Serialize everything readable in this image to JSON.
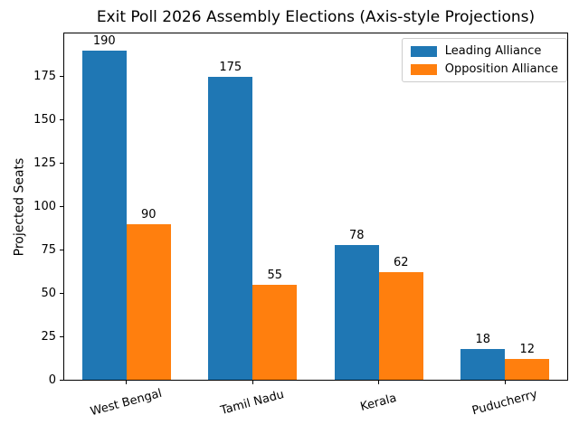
{
  "chart_data": {
    "type": "bar",
    "title": "Exit Poll 2026 Assembly Elections (Axis-style Projections)",
    "ylabel": "Projected Seats",
    "xlabel": "",
    "categories": [
      "West Bengal",
      "Tamil Nadu",
      "Kerala",
      "Puducherry"
    ],
    "series": [
      {
        "name": "Leading Alliance",
        "color": "#1f77b4",
        "values": [
          190,
          175,
          78,
          18
        ]
      },
      {
        "name": "Opposition Alliance",
        "color": "#ff7f0e",
        "values": [
          90,
          55,
          62,
          12
        ]
      }
    ],
    "yticks": [
      0,
      25,
      50,
      75,
      100,
      125,
      150,
      175
    ],
    "ylim": [
      0,
      200
    ],
    "grid": false,
    "bar_value_labels": true,
    "legend_position": "upper right",
    "xtick_rotation_deg": 15,
    "axis_color": "#000000",
    "legend_border_color": "#cccccc",
    "background_color": "#ffffff"
  }
}
